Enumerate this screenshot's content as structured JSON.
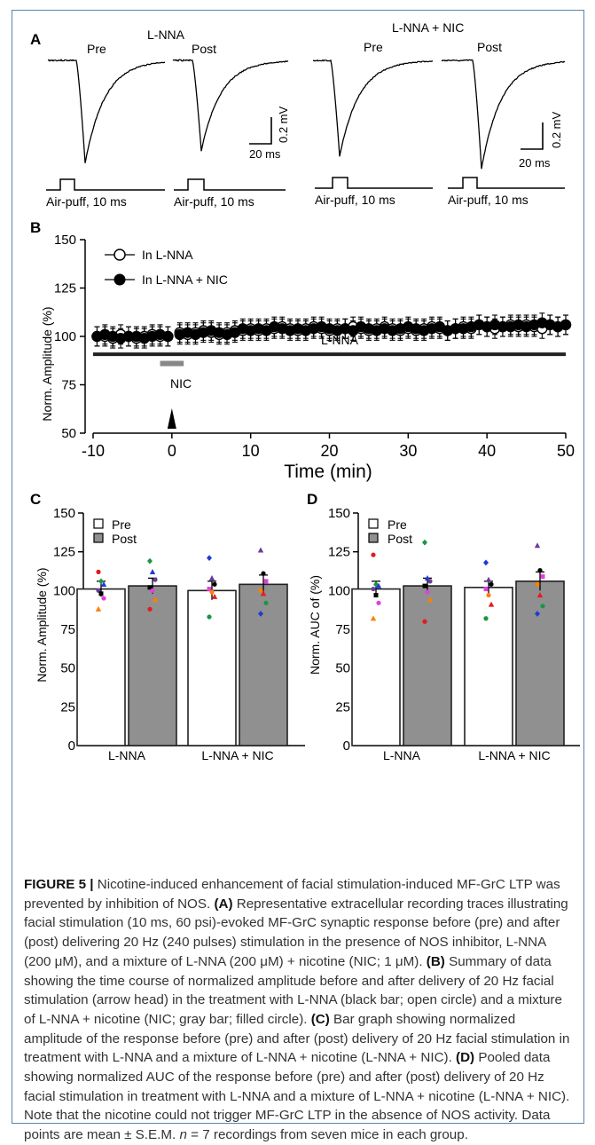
{
  "panelA": {
    "letter": "A",
    "left_group_label": "L-NNA",
    "right_group_label": "L-NNA + NIC",
    "pre": "Pre",
    "post": "Post",
    "scale_y": "0.2 mV",
    "scale_x": "20 ms",
    "stim_label": "Air-puff, 10 ms"
  },
  "panelB": {
    "letter": "B",
    "ylabel": "Norm. Amplitude (%)",
    "xlabel": "Time (min)",
    "legend_open": "In L-NNA",
    "legend_filled": "In L-NNA + NIC",
    "bar_label": "L-NNA",
    "nic_label": "NIC",
    "xticks": [
      "-10",
      "0",
      "10",
      "20",
      "30",
      "40",
      "50"
    ],
    "yticks": [
      "50",
      "75",
      "100",
      "125",
      "150"
    ]
  },
  "panelC": {
    "letter": "C",
    "ylabel": "Norm. Amplitude (%)",
    "legend_pre": "Pre",
    "legend_post": "Post",
    "groups": [
      "L-NNA",
      "L-NNA + NIC"
    ],
    "yticks": [
      "0",
      "25",
      "50",
      "75",
      "100",
      "125",
      "150"
    ]
  },
  "panelD": {
    "letter": "D",
    "ylabel": "Norm. AUC of (%)",
    "legend_pre": "Pre",
    "legend_post": "Post",
    "groups": [
      "L-NNA",
      "L-NNA + NIC"
    ],
    "yticks": [
      "0",
      "25",
      "50",
      "75",
      "100",
      "125",
      "150"
    ]
  },
  "chart_data": [
    {
      "type": "line",
      "panel": "B",
      "xlabel": "Time (min)",
      "ylabel": "Norm. Amplitude (%)",
      "xlim": [
        -10,
        50
      ],
      "ylim": [
        50,
        150
      ],
      "series": [
        {
          "name": "In L-NNA",
          "marker": "open-circle",
          "x": [
            -9.5,
            -8.5,
            -7.5,
            -6.5,
            -5.5,
            -4.5,
            -3.5,
            -2.5,
            -1.5,
            -0.5,
            1,
            2,
            3,
            4,
            5,
            6,
            7,
            8,
            9,
            10,
            11,
            12,
            13,
            14,
            15,
            16,
            17,
            18,
            19,
            20,
            21,
            22,
            23,
            24,
            25,
            26,
            27,
            28,
            29,
            30,
            31,
            32,
            33,
            34,
            35,
            36,
            37,
            38,
            39,
            40,
            41,
            42,
            43,
            44,
            45,
            46,
            47,
            48,
            49,
            50
          ],
          "y": [
            100,
            100,
            99,
            101,
            100,
            99,
            100,
            101,
            100,
            100,
            102,
            101,
            102,
            103,
            102,
            101,
            102,
            103,
            103,
            104,
            103,
            104,
            104,
            105,
            104,
            103,
            104,
            105,
            104,
            103,
            104,
            104,
            105,
            104,
            103,
            104,
            105,
            104,
            103,
            104,
            103,
            104,
            105,
            104,
            103,
            104,
            105,
            104,
            106,
            105,
            104,
            105,
            106,
            105,
            106,
            105,
            104,
            106,
            105,
            106
          ],
          "err": 5
        },
        {
          "name": "In L-NNA + NIC",
          "marker": "filled-circle",
          "x": [
            -9.5,
            -8.5,
            -7.5,
            -6.5,
            -5.5,
            -4.5,
            -3.5,
            -2.5,
            -1.5,
            -0.5,
            1,
            2,
            3,
            4,
            5,
            6,
            7,
            8,
            9,
            10,
            11,
            12,
            13,
            14,
            15,
            16,
            17,
            18,
            19,
            20,
            21,
            22,
            23,
            24,
            25,
            26,
            27,
            28,
            29,
            30,
            31,
            32,
            33,
            34,
            35,
            36,
            37,
            38,
            39,
            40,
            41,
            42,
            43,
            44,
            45,
            46,
            47,
            48,
            49,
            50
          ],
          "y": [
            100,
            101,
            100,
            99,
            100,
            100,
            99,
            100,
            101,
            100,
            101,
            102,
            101,
            102,
            103,
            102,
            101,
            102,
            104,
            103,
            104,
            103,
            105,
            104,
            103,
            104,
            103,
            104,
            105,
            104,
            103,
            104,
            103,
            105,
            104,
            103,
            104,
            103,
            104,
            105,
            104,
            103,
            104,
            105,
            103,
            104,
            104,
            105,
            106,
            105,
            106,
            105,
            105,
            106,
            105,
            106,
            107,
            106,
            105,
            106
          ],
          "err": 5
        }
      ],
      "annotations": [
        "L-NNA bar from -10 to 50",
        "NIC bar around 0",
        "arrowhead at 0"
      ]
    },
    {
      "type": "bar",
      "panel": "C",
      "ylabel": "Norm. Amplitude (%)",
      "ylim": [
        0,
        150
      ],
      "categories": [
        "L-NNA",
        "L-NNA + NIC"
      ],
      "series": [
        {
          "name": "Pre",
          "values": [
            101,
            100
          ],
          "err": [
            5,
            6
          ],
          "points": [
            [
              112,
              106,
              104,
              100,
              98,
              95,
              88
            ],
            [
              121,
              108,
              104,
              101,
              99,
              96,
              83
            ]
          ]
        },
        {
          "name": "Post",
          "values": [
            103,
            104
          ],
          "err": [
            5,
            6
          ],
          "points": [
            [
              119,
              112,
              107,
              102,
              100,
              94,
              88
            ],
            [
              126,
              111,
              106,
              100,
              98,
              92,
              85
            ]
          ]
        }
      ]
    },
    {
      "type": "bar",
      "panel": "D",
      "ylabel": "Norm. AUC of (%)",
      "ylim": [
        0,
        150
      ],
      "categories": [
        "L-NNA",
        "L-NNA + NIC"
      ],
      "series": [
        {
          "name": "Pre",
          "values": [
            101,
            102
          ],
          "err": [
            5,
            4
          ],
          "points": [
            [
              123,
              104,
              103,
              101,
              97,
              92,
              82
            ],
            [
              118,
              107,
              104,
              101,
              97,
              91,
              82
            ]
          ]
        },
        {
          "name": "Post",
          "values": [
            103,
            106
          ],
          "err": [
            5,
            6
          ],
          "points": [
            [
              131,
              108,
              106,
              103,
              99,
              94,
              80
            ],
            [
              129,
              113,
              109,
              104,
              97,
              90,
              85
            ]
          ]
        }
      ]
    }
  ],
  "caption": {
    "fig": "FIGURE 5 |",
    "intro": " Nicotine-induced enhancement of facial stimulation-induced MF-GrC LTP was prevented by inhibition of NOS. ",
    "a_tag": "(A)",
    "a_text": " Representative extracellular recording traces illustrating facial stimulation (10 ms, 60 psi)-evoked MF-GrC synaptic response before (pre) and after (post) delivering 20 Hz (240 pulses) stimulation in the presence of NOS inhibitor, L-NNA (200 μM), and a mixture of L-NNA (200 μM) + nicotine (NIC; 1 μM). ",
    "b_tag": "(B)",
    "b_text": " Summary of data showing the time course of normalized amplitude before and after delivery of 20 Hz facial stimulation (arrow head) in the treatment with L-NNA (black bar; open circle) and a mixture of L-NNA + nicotine (NIC; gray bar; filled circle). ",
    "c_tag": "(C)",
    "c_text": " Bar graph showing normalized amplitude of the response before (pre) and after (post) delivery of 20 Hz facial stimulation in treatment with L-NNA and a mixture of L-NNA + nicotine (L-NNA + NIC). ",
    "d_tag": "(D)",
    "d_text": " Pooled data showing normalized AUC of the response before (pre) and after (post) delivery of 20 Hz facial stimulation in treatment with L-NNA and a mixture of L-NNA + nicotine (L-NNA + NIC). Note that the nicotine could not trigger MF-GrC LTP in the absence of NOS activity. Data points are mean ± S.E.M. ",
    "n_italic": "n",
    "n_text": " = 7 recordings from seven mice in each group."
  }
}
